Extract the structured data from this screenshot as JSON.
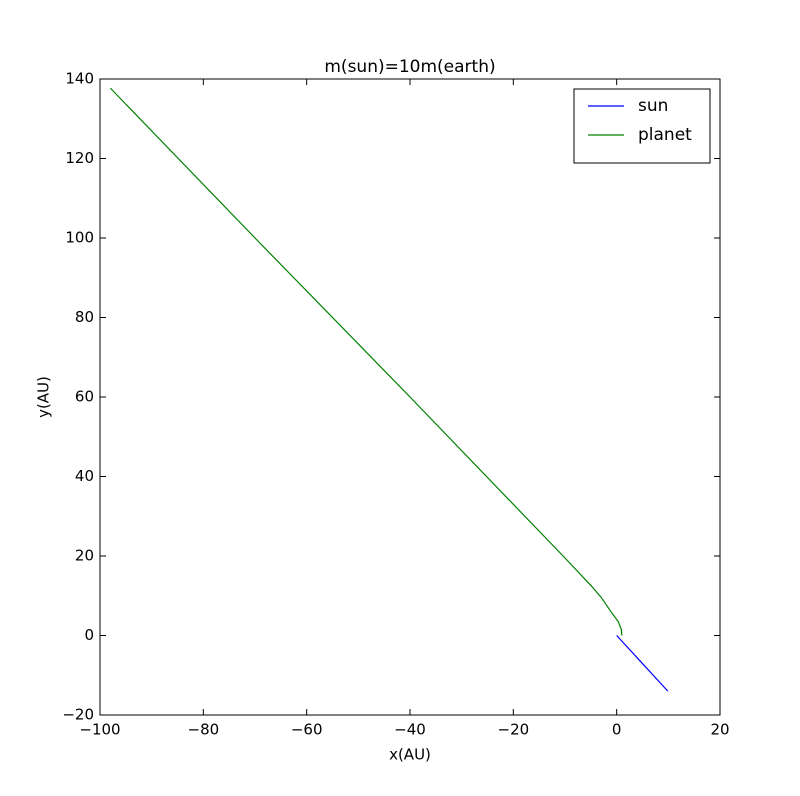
{
  "chart_data": {
    "type": "line",
    "title": "m(sun)=10m(earth)",
    "x_label": "x(AU)",
    "y_label": "y(AU)",
    "series": [
      {
        "name": "sun",
        "color": "#0000ff",
        "x": [
          0,
          9.9
        ],
        "values": [
          0,
          -14
        ]
      },
      {
        "name": "planet",
        "color": "#008000",
        "x": [
          1,
          0.9,
          0.3,
          -1,
          -3,
          -5,
          -10,
          -20,
          -40,
          -70,
          -98
        ],
        "values": [
          0,
          1.5,
          3.5,
          5.8,
          9.6,
          12.6,
          19.5,
          33,
          60,
          100,
          137.7
        ]
      }
    ],
    "xlim": [
      -100,
      20
    ],
    "xticks": [
      {
        "value": -100,
        "label": "−100"
      },
      {
        "value": -80,
        "label": "−80"
      },
      {
        "value": -60,
        "label": "−60"
      },
      {
        "value": -40,
        "label": "−40"
      },
      {
        "value": -20,
        "label": "−20"
      },
      0,
      20
    ],
    "ylim": [
      -20,
      140
    ],
    "yticks": [
      {
        "value": -20,
        "label": "−20"
      },
      0,
      20,
      40,
      60,
      80,
      100,
      120,
      140
    ],
    "legend": "upper right",
    "grid": false
  }
}
